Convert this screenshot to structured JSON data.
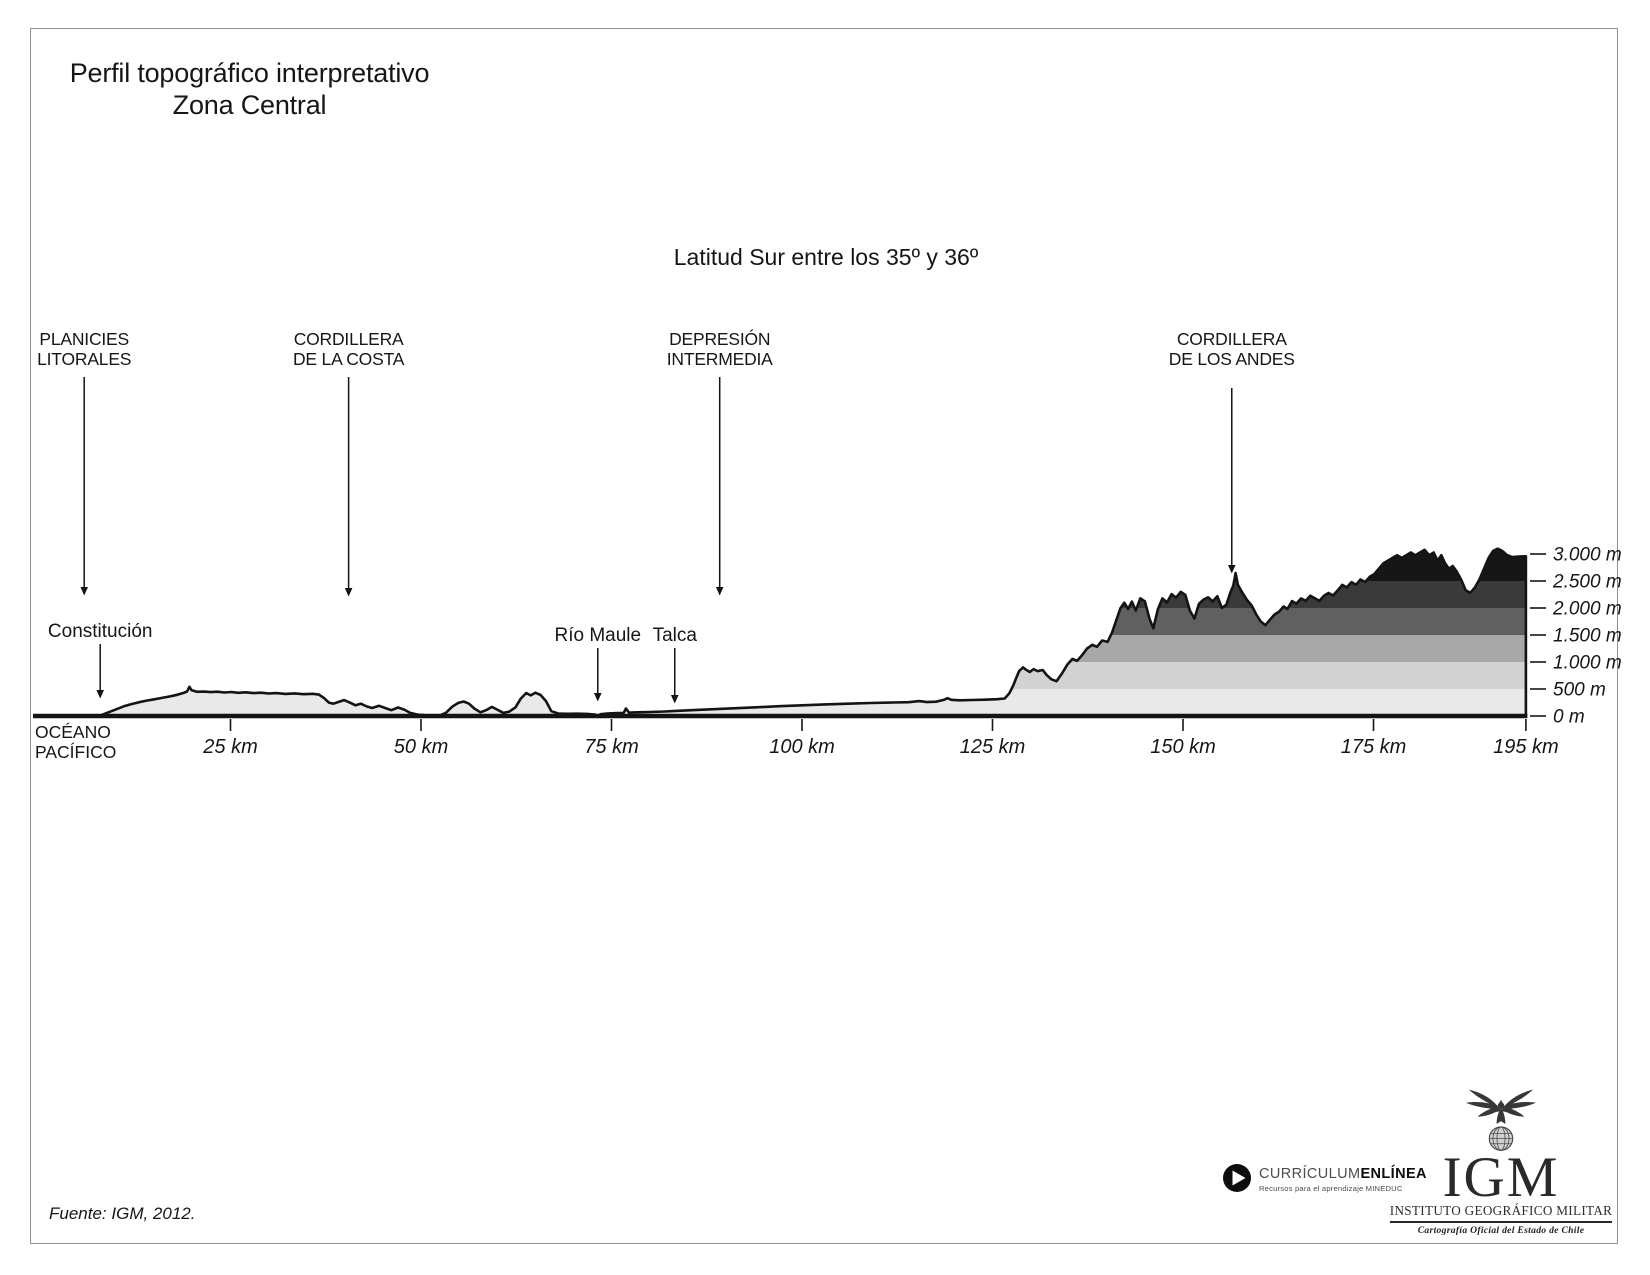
{
  "title": {
    "line1": "Perfil topográfico interpretativo",
    "line2": "Zona Central"
  },
  "subtitle": "Latitud Sur entre los 35º y 36º",
  "ocean": {
    "line1": "OCÉANO",
    "line2": "PACÍFICO"
  },
  "source": "Fuente: IGM, 2012.",
  "logos": {
    "curriculum": {
      "icon": "play-circle-icon",
      "text_regular": "CURRÍCULUM",
      "text_bold": "ENLÍNEA",
      "tagline": "Recursos para el aprendizaje MINEDUC"
    },
    "igm": {
      "emblem": "eagle-globe-emblem",
      "acronym": "IGM",
      "name": "INSTITUTO GEOGRÁFICO MILITAR",
      "tagline": "Cartografía Oficial del Estado de Chile"
    }
  },
  "chart_data": {
    "type": "area",
    "title": "Perfil topográfico interpretativo — Zona Central",
    "subtitle": "Latitud Sur entre los 35º y 36º",
    "x_unit": "km",
    "y_unit": "m",
    "xlim": [
      0,
      195
    ],
    "ylim": [
      0,
      3200
    ],
    "grid": false,
    "x_ticks": [
      {
        "value": 25,
        "label": "25 km"
      },
      {
        "value": 50,
        "label": "50 km"
      },
      {
        "value": 75,
        "label": "75 km"
      },
      {
        "value": 100,
        "label": "100 km"
      },
      {
        "value": 125,
        "label": "125 km"
      },
      {
        "value": 150,
        "label": "150 km"
      },
      {
        "value": 175,
        "label": "175 km"
      },
      {
        "value": 195,
        "label": "195 km"
      }
    ],
    "y_ticks": [
      {
        "value": 0,
        "label": "0 m"
      },
      {
        "value": 500,
        "label": "500 m"
      },
      {
        "value": 1000,
        "label": "1.000 m"
      },
      {
        "value": 1500,
        "label": "1.500 m"
      },
      {
        "value": 2000,
        "label": "2.000 m"
      },
      {
        "value": 2500,
        "label": "2.500 m"
      },
      {
        "value": 3000,
        "label": "3.000 m"
      }
    ],
    "elevation_bands": [
      {
        "from": 0,
        "to": 500,
        "color": "#e9e9e9"
      },
      {
        "from": 500,
        "to": 1000,
        "color": "#d2d2d2"
      },
      {
        "from": 1000,
        "to": 1500,
        "color": "#a8a8a8"
      },
      {
        "from": 1500,
        "to": 2000,
        "color": "#606060"
      },
      {
        "from": 2000,
        "to": 2500,
        "color": "#3a3a3a"
      },
      {
        "from": 2500,
        "to": 3200,
        "color": "#161616"
      }
    ],
    "outline_color": "#141414",
    "regions": [
      {
        "id": "planicies-litorales",
        "label_lines": [
          "PLANICIES",
          "LITORALES"
        ],
        "km": 5.8
      },
      {
        "id": "cordillera-de-la-costa",
        "label_lines": [
          "CORDILLERA",
          "DE LA COSTA"
        ],
        "km": 40.5
      },
      {
        "id": "depresion-intermedia",
        "label_lines": [
          "DEPRESIÓN",
          "INTERMEDIA"
        ],
        "km": 89.2
      },
      {
        "id": "cordillera-de-los-andes",
        "label_lines": [
          "CORDILLERA",
          "DE LOS ANDES"
        ],
        "km": 156.4
      }
    ],
    "places": [
      {
        "id": "constitucion",
        "label": "Constitución",
        "km": 7.9
      },
      {
        "id": "rio-maule",
        "label": "Río Maule",
        "km": 73.2
      },
      {
        "id": "talca",
        "label": "Talca",
        "km": 83.3
      }
    ],
    "profile": [
      [
        7.8,
        0
      ],
      [
        8.4,
        35
      ],
      [
        9.2,
        80
      ],
      [
        10,
        125
      ],
      [
        11,
        180
      ],
      [
        12,
        220
      ],
      [
        13,
        255
      ],
      [
        14,
        285
      ],
      [
        15,
        310
      ],
      [
        16,
        335
      ],
      [
        17,
        362
      ],
      [
        18,
        392
      ],
      [
        18.8,
        425
      ],
      [
        19.3,
        455
      ],
      [
        19.6,
        540
      ],
      [
        19.9,
        478
      ],
      [
        20.6,
        448
      ],
      [
        21.5,
        452
      ],
      [
        22.4,
        442
      ],
      [
        23.3,
        450
      ],
      [
        24.2,
        436
      ],
      [
        25.1,
        444
      ],
      [
        26,
        430
      ],
      [
        27,
        438
      ],
      [
        28,
        424
      ],
      [
        29,
        432
      ],
      [
        30,
        416
      ],
      [
        31,
        424
      ],
      [
        32.2,
        410
      ],
      [
        33.4,
        418
      ],
      [
        34.6,
        404
      ],
      [
        35.8,
        412
      ],
      [
        36.6,
        396
      ],
      [
        37.3,
        330
      ],
      [
        37.9,
        248
      ],
      [
        38.5,
        228
      ],
      [
        39.2,
        262
      ],
      [
        39.9,
        295
      ],
      [
        40.7,
        246
      ],
      [
        41.4,
        198
      ],
      [
        42.1,
        228
      ],
      [
        42.9,
        175
      ],
      [
        43.6,
        148
      ],
      [
        44.5,
        188
      ],
      [
        45.3,
        148
      ],
      [
        46.1,
        108
      ],
      [
        47,
        158
      ],
      [
        47.8,
        118
      ],
      [
        48.6,
        58
      ],
      [
        49.5,
        28
      ],
      [
        50.5,
        14
      ],
      [
        51.6,
        10
      ],
      [
        52.6,
        16
      ],
      [
        53.3,
        62
      ],
      [
        54.1,
        172
      ],
      [
        54.9,
        242
      ],
      [
        55.6,
        268
      ],
      [
        56.3,
        228
      ],
      [
        57,
        138
      ],
      [
        57.8,
        68
      ],
      [
        58.6,
        112
      ],
      [
        59.3,
        168
      ],
      [
        60,
        118
      ],
      [
        60.8,
        58
      ],
      [
        61.6,
        82
      ],
      [
        62.4,
        162
      ],
      [
        63.1,
        322
      ],
      [
        63.8,
        425
      ],
      [
        64.4,
        382
      ],
      [
        65,
        432
      ],
      [
        65.7,
        388
      ],
      [
        66.4,
        275
      ],
      [
        67.1,
        88
      ],
      [
        68,
        46
      ],
      [
        69.2,
        40
      ],
      [
        70.5,
        42
      ],
      [
        71.8,
        38
      ],
      [
        72.8,
        28
      ],
      [
        73.2,
        4
      ],
      [
        73.6,
        34
      ],
      [
        74.6,
        48
      ],
      [
        75.8,
        54
      ],
      [
        76.6,
        58
      ],
      [
        76.9,
        138
      ],
      [
        77.3,
        62
      ],
      [
        78.3,
        68
      ],
      [
        80,
        74
      ],
      [
        82,
        84
      ],
      [
        83.4,
        94
      ],
      [
        85.5,
        108
      ],
      [
        88,
        124
      ],
      [
        91,
        143
      ],
      [
        94,
        162
      ],
      [
        97,
        182
      ],
      [
        100,
        199
      ],
      [
        103,
        214
      ],
      [
        106,
        228
      ],
      [
        109,
        240
      ],
      [
        112,
        250
      ],
      [
        114,
        256
      ],
      [
        115.4,
        276
      ],
      [
        116.4,
        258
      ],
      [
        117.6,
        264
      ],
      [
        118.6,
        298
      ],
      [
        119.1,
        330
      ],
      [
        119.6,
        300
      ],
      [
        120.7,
        290
      ],
      [
        122.3,
        296
      ],
      [
        124,
        302
      ],
      [
        125.6,
        312
      ],
      [
        126.6,
        324
      ],
      [
        127.2,
        420
      ],
      [
        127.7,
        560
      ],
      [
        128.1,
        700
      ],
      [
        128.5,
        835
      ],
      [
        129,
        900
      ],
      [
        129.4,
        858
      ],
      [
        129.9,
        815
      ],
      [
        130.4,
        868
      ],
      [
        130.9,
        832
      ],
      [
        131.6,
        852
      ],
      [
        132.1,
        762
      ],
      [
        132.7,
        682
      ],
      [
        133.4,
        645
      ],
      [
        134.1,
        782
      ],
      [
        134.8,
        948
      ],
      [
        135.5,
        1058
      ],
      [
        136.1,
        1022
      ],
      [
        136.7,
        1118
      ],
      [
        137.4,
        1248
      ],
      [
        138.1,
        1318
      ],
      [
        138.7,
        1282
      ],
      [
        139.4,
        1398
      ],
      [
        140.1,
        1372
      ],
      [
        140.7,
        1548
      ],
      [
        141.3,
        1795
      ],
      [
        141.8,
        1998
      ],
      [
        142.3,
        2098
      ],
      [
        142.8,
        1982
      ],
      [
        143.3,
        2118
      ],
      [
        143.8,
        1952
      ],
      [
        144.4,
        2178
      ],
      [
        145,
        2122
      ],
      [
        145.6,
        1802
      ],
      [
        146.1,
        1625
      ],
      [
        146.7,
        1978
      ],
      [
        147.3,
        2178
      ],
      [
        147.9,
        2102
      ],
      [
        148.5,
        2258
      ],
      [
        149.1,
        2192
      ],
      [
        149.7,
        2298
      ],
      [
        150.3,
        2242
      ],
      [
        150.9,
        1952
      ],
      [
        151.5,
        1805
      ],
      [
        152.1,
        2078
      ],
      [
        152.7,
        2158
      ],
      [
        153.3,
        2198
      ],
      [
        153.9,
        2122
      ],
      [
        154.5,
        2218
      ],
      [
        155.1,
        2002
      ],
      [
        155.7,
        2062
      ],
      [
        156.2,
        2278
      ],
      [
        156.6,
        2415
      ],
      [
        156.9,
        2648
      ],
      [
        157.2,
        2428
      ],
      [
        157.8,
        2282
      ],
      [
        158.4,
        2148
      ],
      [
        159,
        2048
      ],
      [
        159.6,
        1882
      ],
      [
        160.2,
        1752
      ],
      [
        160.8,
        1682
      ],
      [
        161.4,
        1782
      ],
      [
        162,
        1878
      ],
      [
        162.6,
        1932
      ],
      [
        163.2,
        2028
      ],
      [
        163.7,
        1982
      ],
      [
        164.3,
        2128
      ],
      [
        164.9,
        2082
      ],
      [
        165.5,
        2178
      ],
      [
        166.1,
        2132
      ],
      [
        166.7,
        2228
      ],
      [
        167.3,
        2182
      ],
      [
        167.9,
        2132
      ],
      [
        168.5,
        2228
      ],
      [
        169.1,
        2278
      ],
      [
        169.7,
        2232
      ],
      [
        170.3,
        2328
      ],
      [
        170.9,
        2428
      ],
      [
        171.5,
        2382
      ],
      [
        172.1,
        2478
      ],
      [
        172.7,
        2432
      ],
      [
        173.3,
        2528
      ],
      [
        173.9,
        2482
      ],
      [
        174.5,
        2578
      ],
      [
        175.1,
        2628
      ],
      [
        175.7,
        2728
      ],
      [
        176.3,
        2828
      ],
      [
        176.9,
        2878
      ],
      [
        177.5,
        2928
      ],
      [
        178.1,
        2978
      ],
      [
        178.7,
        2928
      ],
      [
        179.3,
        2978
      ],
      [
        179.9,
        3028
      ],
      [
        180.5,
        2978
      ],
      [
        181.1,
        3028
      ],
      [
        181.7,
        3078
      ],
      [
        182.3,
        2978
      ],
      [
        182.9,
        3028
      ],
      [
        183.4,
        2878
      ],
      [
        183.9,
        2978
      ],
      [
        184.4,
        2828
      ],
      [
        184.9,
        2728
      ],
      [
        185.4,
        2778
      ],
      [
        185.9,
        2678
      ],
      [
        186.5,
        2528
      ],
      [
        187.1,
        2328
      ],
      [
        187.7,
        2282
      ],
      [
        188.3,
        2378
      ],
      [
        188.9,
        2528
      ],
      [
        189.5,
        2728
      ],
      [
        190.1,
        2928
      ],
      [
        190.7,
        3058
      ],
      [
        191.3,
        3098
      ],
      [
        191.9,
        3058
      ],
      [
        192.5,
        2982
      ],
      [
        193.2,
        2942
      ],
      [
        194.1,
        2952
      ],
      [
        195,
        2958
      ]
    ]
  }
}
